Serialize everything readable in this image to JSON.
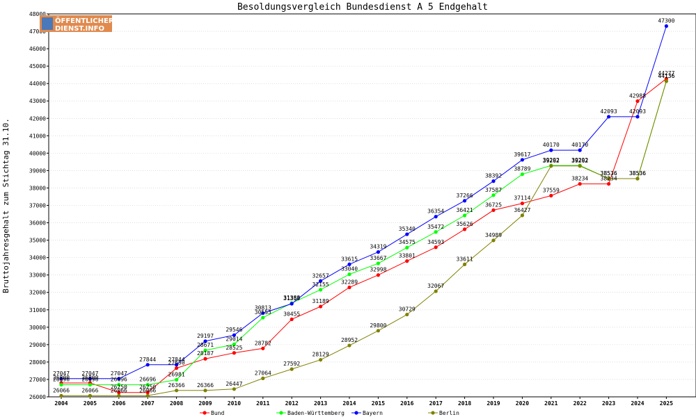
{
  "chart_data": {
    "type": "line",
    "title": "Besoldungsvergleich Bundesdienst A 5 Endgehalt",
    "xlabel": "",
    "ylabel": "Bruttojahresgehalt zum Stichtag 31.10.",
    "ylim": [
      26000,
      48000
    ],
    "yticks": [
      26000,
      27000,
      28000,
      29000,
      30000,
      31000,
      32000,
      33000,
      34000,
      35000,
      36000,
      37000,
      38000,
      39000,
      40000,
      41000,
      42000,
      43000,
      44000,
      45000,
      46000,
      47000,
      48000
    ],
    "categories": [
      "2004",
      "2005",
      "2006",
      "2007",
      "2008",
      "2009",
      "2010",
      "2011",
      "2012",
      "2013",
      "2014",
      "2015",
      "2016",
      "2017",
      "2018",
      "2019",
      "2020",
      "2021",
      "2022",
      "2023",
      "2024",
      "2025"
    ],
    "grid": true,
    "legend_position": "bottom",
    "series": [
      {
        "name": "Bund",
        "color": "#ff0000",
        "values": [
          26800,
          26800,
          26250,
          26250,
          27650,
          28187,
          28525,
          28782,
          30455,
          31189,
          32289,
          32998,
          33801,
          34593,
          35626,
          36725,
          37114,
          37559,
          38234,
          38234,
          42988,
          44277
        ]
      },
      {
        "name": "Baden-Württemberg",
        "color": "#00ff00",
        "values": [
          26696,
          26696,
          26696,
          26696,
          26981,
          28671,
          29014,
          30553,
          31388,
          32155,
          33040,
          33667,
          34575,
          35472,
          36421,
          37587,
          38789,
          39292,
          39292,
          38536,
          38536,
          44136
        ]
      },
      {
        "name": "Bayern",
        "color": "#0000ff",
        "values": [
          27047,
          27047,
          27047,
          27844,
          27844,
          29197,
          29546,
          30813,
          31350,
          32657,
          33615,
          34319,
          35340,
          36354,
          37266,
          38392,
          39617,
          40170,
          40170,
          42093,
          42093,
          47300
        ]
      },
      {
        "name": "Berlin",
        "color": "#808000",
        "values": [
          26066,
          26066,
          26066,
          26066,
          26366,
          26366,
          26447,
          27064,
          27592,
          28129,
          28952,
          29800,
          30729,
          32067,
          33611,
          34989,
          36427,
          39262,
          39262,
          38536,
          38536,
          44136
        ]
      }
    ]
  },
  "logo": {
    "line1": "ÖFFENTLICHER",
    "line2": "DIENST.INFO"
  }
}
